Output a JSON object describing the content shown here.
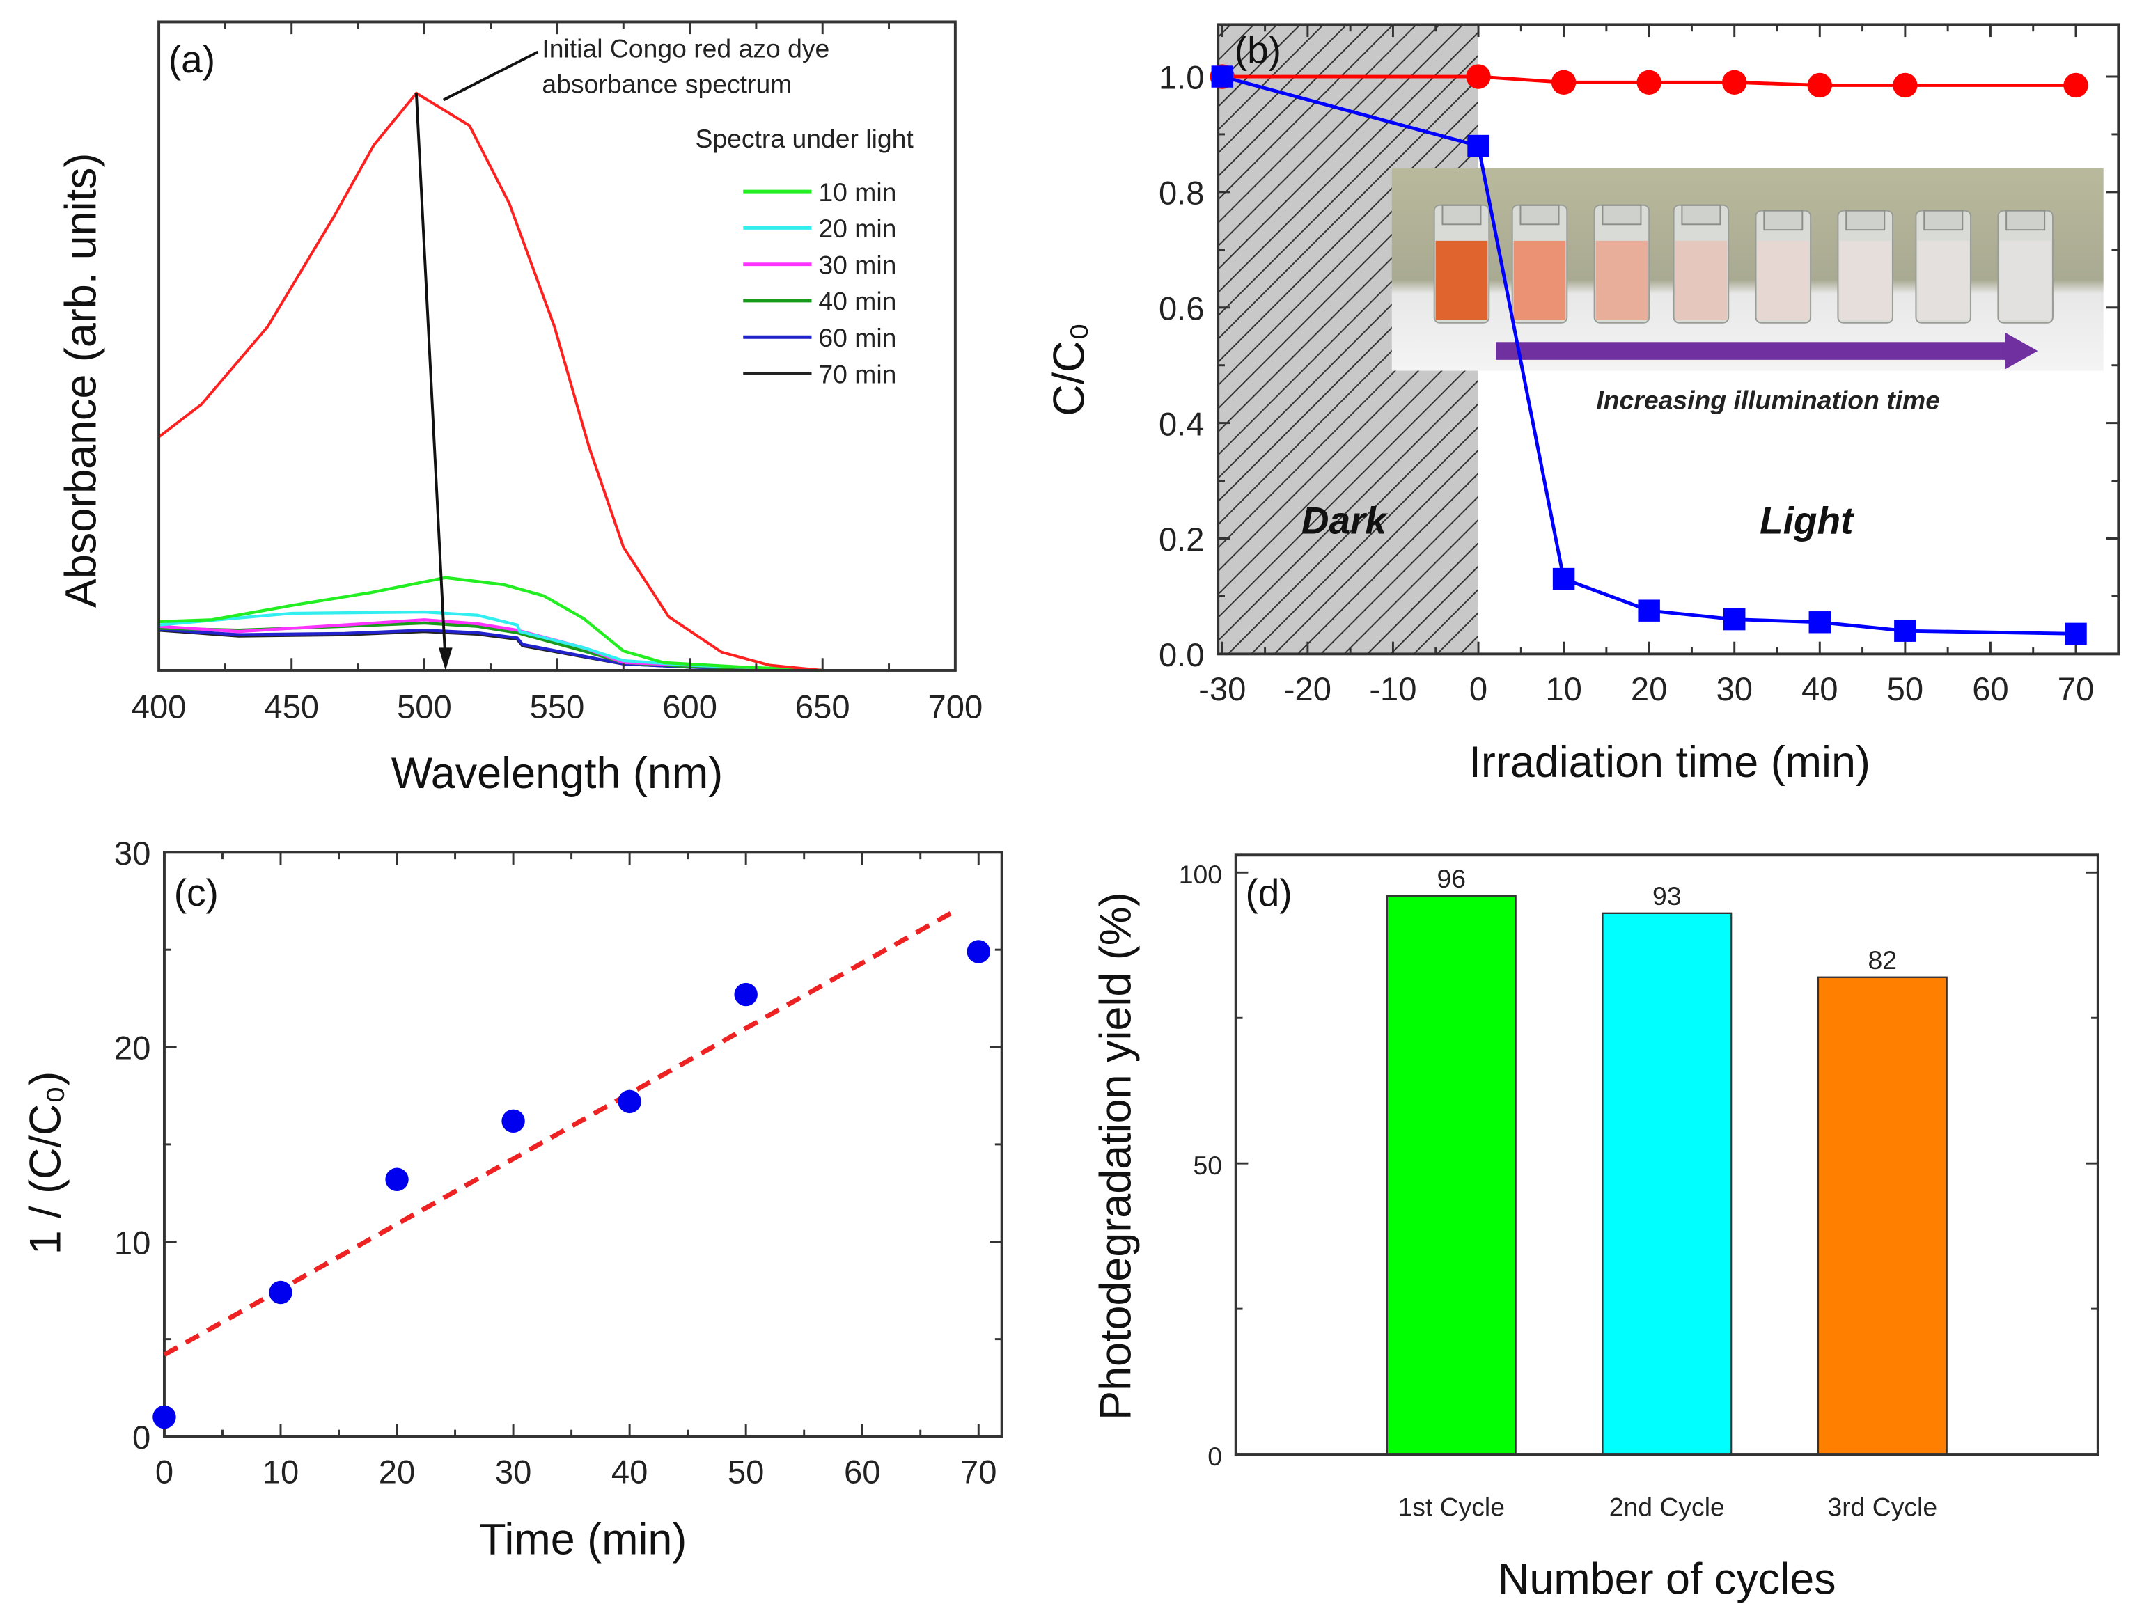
{
  "chart_data": [
    {
      "panel": "(a)",
      "type": "line",
      "xlabel": "Wavelength (nm)",
      "ylabel": "Absorbance (arb. units)",
      "xlim": [
        400,
        700
      ],
      "ylim": [
        0,
        1
      ],
      "xticks": [
        "400",
        "450",
        "500",
        "550",
        "600",
        "650",
        "700"
      ],
      "annotation": [
        "Initial Congo red azo dye",
        "absorbance spectrum"
      ],
      "legend_title": "Spectra under light",
      "legend_placement": "top-right",
      "series": [
        {
          "label": "",
          "color": "#ff2020",
          "x": [
            400,
            416,
            441,
            466,
            481,
            497,
            517,
            532,
            549,
            562,
            575,
            592,
            612,
            630,
            650
          ],
          "y": [
            0.36,
            0.41,
            0.53,
            0.7,
            0.81,
            0.89,
            0.84,
            0.72,
            0.53,
            0.345,
            0.19,
            0.083,
            0.028,
            0.008,
            0
          ]
        },
        {
          "name": "10 min",
          "color": "#22ee22",
          "x": [
            400,
            420,
            450,
            480,
            508,
            530,
            545,
            560,
            575,
            590,
            620,
            650
          ],
          "y": [
            0.075,
            0.078,
            0.1,
            0.12,
            0.143,
            0.132,
            0.115,
            0.08,
            0.03,
            0.012,
            0.005,
            0
          ]
        },
        {
          "name": "20 min",
          "color": "#33eeee",
          "x": [
            400,
            450,
            500,
            520,
            535,
            536,
            560,
            575,
            600,
            650
          ],
          "y": [
            0.07,
            0.088,
            0.09,
            0.085,
            0.07,
            0.06,
            0.035,
            0.015,
            0.008,
            0
          ]
        },
        {
          "name": "30 min",
          "color": "#ff33ff",
          "x": [
            400,
            430,
            470,
            500,
            520,
            535,
            560,
            575,
            600,
            650
          ],
          "y": [
            0.068,
            0.06,
            0.07,
            0.078,
            0.072,
            0.062,
            0.035,
            0.012,
            0.008,
            0
          ]
        },
        {
          "name": "40 min",
          "color": "#1a9a1a",
          "x": [
            400,
            430,
            470,
            500,
            520,
            535,
            560,
            575,
            600,
            650
          ],
          "y": [
            0.065,
            0.062,
            0.068,
            0.073,
            0.068,
            0.058,
            0.03,
            0.012,
            0.006,
            0
          ]
        },
        {
          "name": "60 min",
          "color": "#2222cc",
          "x": [
            400,
            430,
            470,
            500,
            520,
            535,
            537,
            575,
            600,
            650
          ],
          "y": [
            0.063,
            0.055,
            0.057,
            0.062,
            0.058,
            0.05,
            0.04,
            0.01,
            0.005,
            0
          ]
        },
        {
          "name": "70 min",
          "color": "#222222",
          "x": [
            400,
            430,
            470,
            500,
            520,
            535,
            537,
            575,
            600,
            650
          ],
          "y": [
            0.062,
            0.053,
            0.055,
            0.06,
            0.056,
            0.048,
            0.038,
            0.01,
            0.005,
            0
          ]
        }
      ]
    },
    {
      "panel": "(b)",
      "type": "line",
      "xlabel": "Irradiation time (min)",
      "ylabel": "C/C₀",
      "xlim": [
        -30.5,
        75
      ],
      "ylim": [
        0,
        1.09
      ],
      "xticks": [
        "-30",
        "-20",
        "-10",
        "0",
        "10",
        "20",
        "30",
        "40",
        "50",
        "60",
        "70"
      ],
      "yticks": [
        "0.0",
        "0.2",
        "0.4",
        "0.6",
        "0.8",
        "1.0"
      ],
      "shaded_region": {
        "from": -30,
        "to": 0,
        "pattern": "hatched",
        "color": "#c8c8c8"
      },
      "region_labels": {
        "dark": "Dark",
        "light": "Light",
        "dark_color": "#ffff00",
        "light_color": "#ff8000"
      },
      "inset_caption": "Increasing illumination time",
      "inset_caption_color": "#ff8000",
      "inset_arrow_color": "#7030a0",
      "series": [
        {
          "color": "#ff0000",
          "marker": "circle",
          "x": [
            -30,
            0,
            10,
            20,
            30,
            40,
            50,
            70
          ],
          "y": [
            1.0,
            1.0,
            0.99,
            0.99,
            0.99,
            0.985,
            0.985,
            0.985
          ]
        },
        {
          "color": "#0000ff",
          "marker": "square",
          "x": [
            -30,
            0,
            10,
            20,
            30,
            40,
            50,
            70
          ],
          "y": [
            1.0,
            0.88,
            0.13,
            0.075,
            0.06,
            0.055,
            0.04,
            0.035
          ]
        }
      ]
    },
    {
      "panel": "(c)",
      "type": "scatter",
      "xlabel": "Time (min)",
      "ylabel": "1 / (C/C₀)",
      "xlim": [
        0,
        72
      ],
      "ylim": [
        0,
        30
      ],
      "xticks": [
        "0",
        "10",
        "20",
        "30",
        "40",
        "50",
        "60",
        "70"
      ],
      "yticks": [
        "0",
        "10",
        "20",
        "30"
      ],
      "points": {
        "color": "#0000ee",
        "x": [
          0,
          10,
          20,
          30,
          40,
          50,
          70
        ],
        "y": [
          1.0,
          7.4,
          13.2,
          16.2,
          17.2,
          22.7,
          24.9
        ]
      },
      "fit_line": {
        "color": "#ee2222",
        "style": "dashed",
        "x": [
          0,
          68
        ],
        "y": [
          4.2,
          27.0
        ]
      }
    },
    {
      "panel": "(d)",
      "type": "bar",
      "xlabel": "Number of cycles",
      "ylabel": "Photodegradation yield (%)",
      "ylim": [
        0,
        103
      ],
      "yticks": [
        "0",
        "50",
        "100"
      ],
      "categories": [
        "1st Cycle",
        "2nd Cycle",
        "3rd Cycle"
      ],
      "values": [
        96,
        93,
        82
      ],
      "value_labels": [
        "96",
        "93",
        "82"
      ],
      "colors": [
        "#00ff00",
        "#00ffff",
        "#ff8000"
      ]
    }
  ]
}
